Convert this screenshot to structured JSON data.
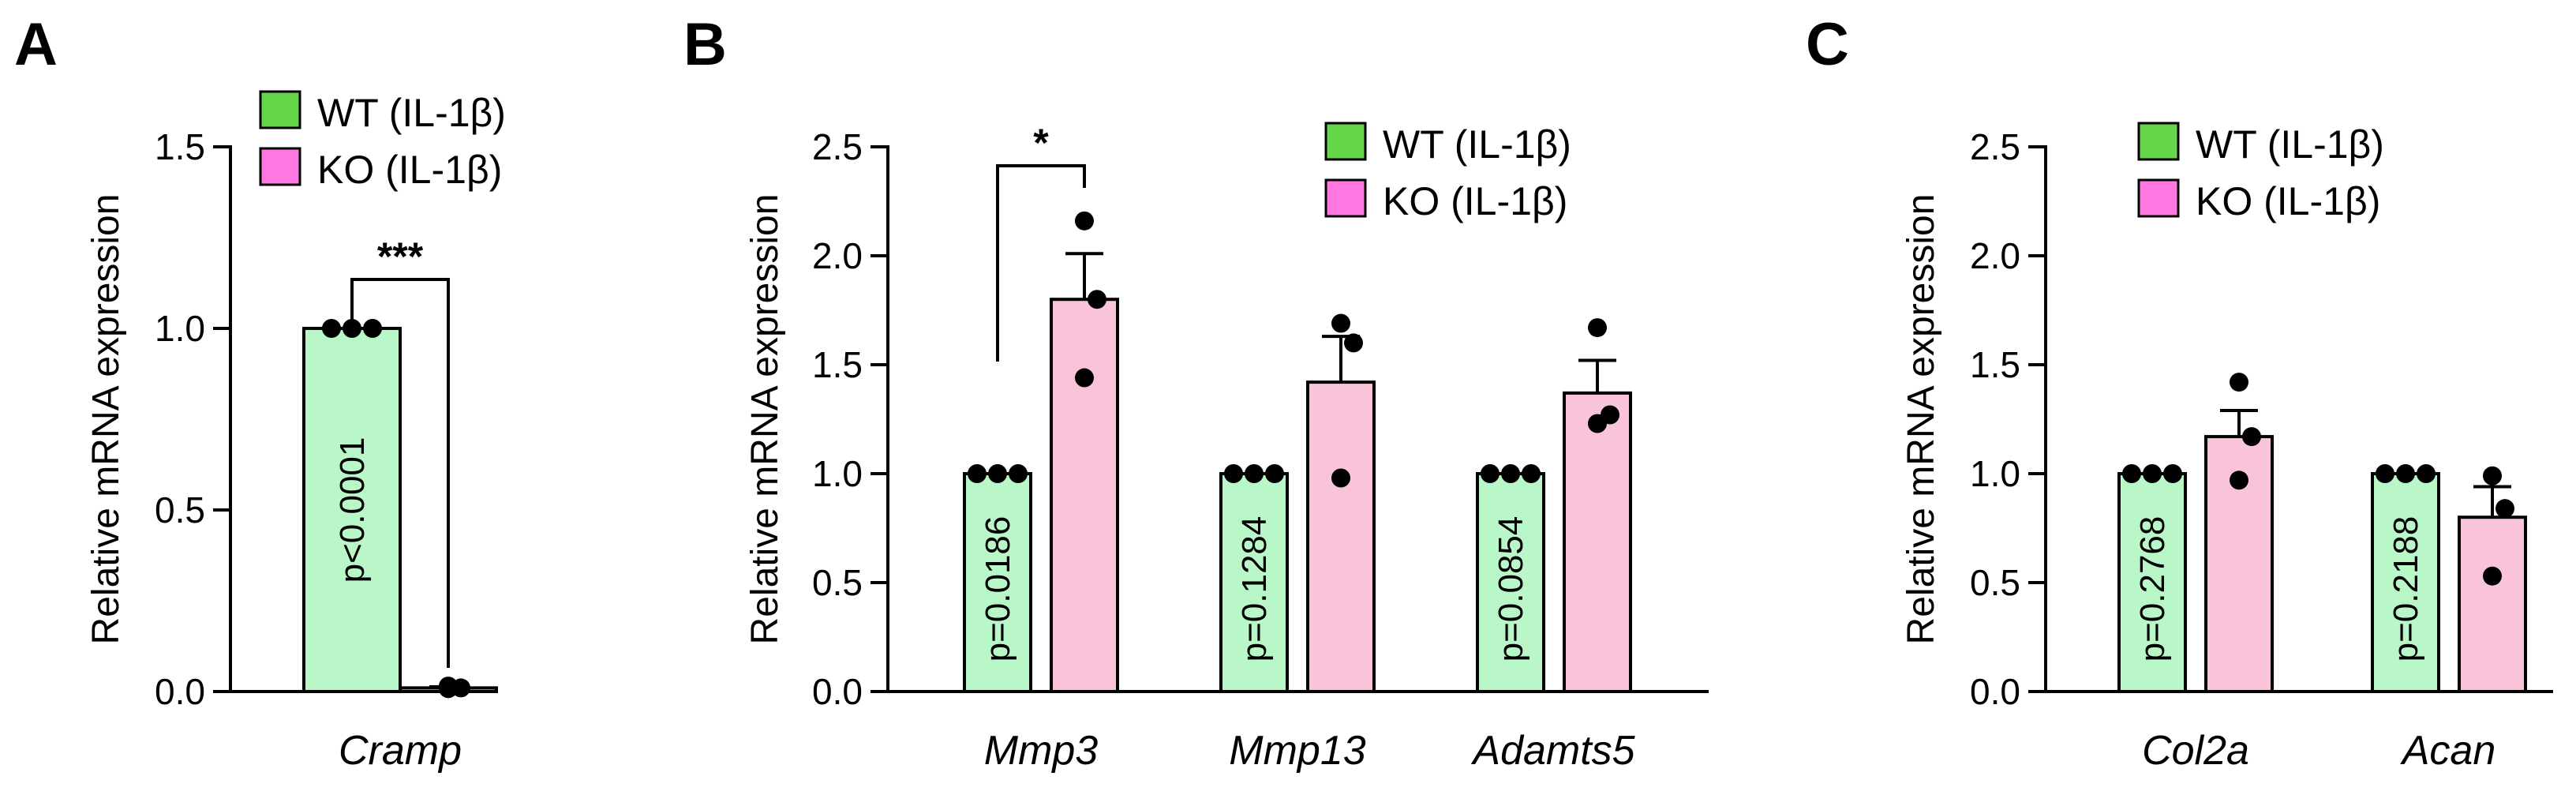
{
  "chart_data": [
    {
      "panel": "A",
      "type": "bar",
      "ylabel": "Relative mRNA expression",
      "ylim": [
        0,
        1.5
      ],
      "yticks": [
        "0.0",
        "0.5",
        "1.0",
        "1.5"
      ],
      "categories": [
        "Cramp"
      ],
      "series": [
        {
          "name": "WT (IL-1β)",
          "color": "#b9f7c8",
          "legend_color": "#66d64a",
          "means": [
            1.0
          ],
          "sem": [
            0.0
          ],
          "points": [
            [
              1.0,
              1.0,
              1.0
            ]
          ]
        },
        {
          "name": "KO (IL-1β)",
          "color": "#f9c3da",
          "legend_color": "#ff77e0",
          "means": [
            0.01
          ],
          "sem": [
            0.003
          ],
          "points": [
            [
              0.01,
              0.015,
              0.008
            ]
          ]
        }
      ],
      "pvalues": [
        "p<0.0001"
      ],
      "significance": [
        {
          "category": 0,
          "label": "***"
        }
      ]
    },
    {
      "panel": "B",
      "type": "bar",
      "ylabel": "Relative mRNA expression",
      "ylim": [
        0,
        2.5
      ],
      "yticks": [
        "0.0",
        "0.5",
        "1.0",
        "1.5",
        "2.0",
        "2.5"
      ],
      "categories": [
        "Mmp3",
        "Mmp13",
        "Adamts5"
      ],
      "series": [
        {
          "name": "WT (IL-1β)",
          "color": "#b9f7c8",
          "legend_color": "#66d64a",
          "means": [
            1.0,
            1.0,
            1.0
          ],
          "sem": [
            0,
            0,
            0
          ],
          "points": [
            [
              1.0,
              1.0,
              1.0
            ],
            [
              1.0,
              1.0,
              1.0
            ],
            [
              1.0,
              1.0,
              1.0
            ]
          ]
        },
        {
          "name": "KO (IL-1β)",
          "color": "#f9c3da",
          "legend_color": "#ff77e0",
          "means": [
            1.8,
            1.42,
            1.37
          ],
          "sem": [
            0.21,
            0.21,
            0.15
          ],
          "points": [
            [
              2.16,
              1.8,
              1.44
            ],
            [
              1.69,
              1.6,
              0.98
            ],
            [
              1.67,
              1.27,
              1.23
            ]
          ]
        }
      ],
      "pvalues": [
        "p=0.0186",
        "p=0.1284",
        "p=0.0854"
      ],
      "significance": [
        {
          "category": 0,
          "label": "*"
        }
      ]
    },
    {
      "panel": "C",
      "type": "bar",
      "ylabel": "Relative mRNA expression",
      "ylim": [
        0,
        2.5
      ],
      "yticks": [
        "0.0",
        "0.5",
        "1.0",
        "1.5",
        "2.0",
        "2.5"
      ],
      "categories": [
        "Col2a",
        "Acan"
      ],
      "series": [
        {
          "name": "WT (IL-1β)",
          "color": "#b9f7c8",
          "legend_color": "#66d64a",
          "means": [
            1.0,
            1.0
          ],
          "sem": [
            0,
            0
          ],
          "points": [
            [
              1.0,
              1.0,
              1.0
            ],
            [
              1.0,
              1.0,
              1.0
            ]
          ]
        },
        {
          "name": "KO (IL-1β)",
          "color": "#f9c3da",
          "legend_color": "#ff77e0",
          "means": [
            1.17,
            0.8
          ],
          "sem": [
            0.12,
            0.14
          ],
          "points": [
            [
              1.42,
              1.17,
              0.97
            ],
            [
              0.99,
              0.84,
              0.53
            ]
          ]
        }
      ],
      "pvalues": [
        "p=0.2768",
        "p=0.2188"
      ],
      "significance": []
    }
  ]
}
